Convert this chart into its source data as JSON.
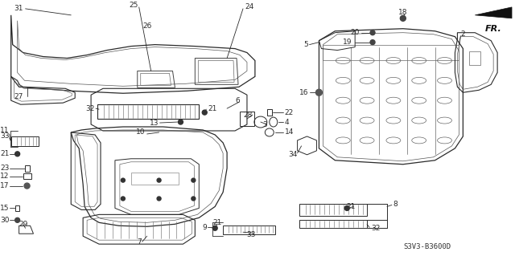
{
  "bg_color": "#ffffff",
  "lc": "#2a2a2a",
  "diagram_code": "S3V3-B3600D",
  "fig_w": 6.4,
  "fig_h": 3.19,
  "dpi": 100
}
